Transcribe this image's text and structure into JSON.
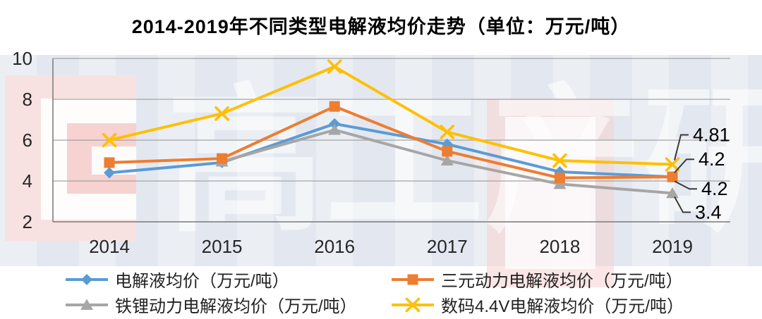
{
  "chart_data": {
    "type": "line",
    "title": "2014-2019年不同类型电解液均价走势（单位：万元/吨）",
    "categories": [
      "2014",
      "2015",
      "2016",
      "2017",
      "2018",
      "2019"
    ],
    "xlabel": "",
    "ylabel": "",
    "ylim": [
      2,
      10
    ],
    "yticks": [
      2,
      4,
      6,
      8,
      10
    ],
    "grid": true,
    "legend_position": "bottom",
    "series": [
      {
        "name": "电解液均价（万元/吨）",
        "color": "#5B9BD5",
        "marker": "diamond",
        "values": [
          4.4,
          4.9,
          6.8,
          5.8,
          4.45,
          4.2
        ]
      },
      {
        "name": "三元动力电解液均价（万元/吨）",
        "color": "#ED7D31",
        "marker": "square",
        "values": [
          4.9,
          5.1,
          7.65,
          5.45,
          4.15,
          4.2
        ]
      },
      {
        "name": "铁锂动力电解液均价（万元/吨）",
        "color": "#A6A6A6",
        "marker": "triangle",
        "values": [
          null,
          4.95,
          6.5,
          5.0,
          3.85,
          3.4
        ]
      },
      {
        "name": "数码4.4V电解液均价（万元/吨）",
        "color": "#FFC000",
        "marker": "x",
        "values": [
          6.0,
          7.3,
          9.6,
          6.4,
          5.0,
          4.81
        ]
      }
    ],
    "annotations": [
      {
        "label": "4.81",
        "series_index": 3,
        "category": "2019"
      },
      {
        "label": "4.2",
        "series_index": 0,
        "category": "2019"
      },
      {
        "label": "4.2",
        "series_index": 1,
        "category": "2019"
      },
      {
        "label": "3.4",
        "series_index": 2,
        "category": "2019"
      }
    ],
    "watermark": "高工产研",
    "colors": {
      "gridline": "#a3a3a3",
      "axis": "#7f7f7f",
      "tick_label": "#262626",
      "annotation_text": "#000000",
      "leader_line": "#3a3a3a",
      "band_background": "#e3e8f0",
      "watermark_pink": "#f6d2d0"
    }
  }
}
